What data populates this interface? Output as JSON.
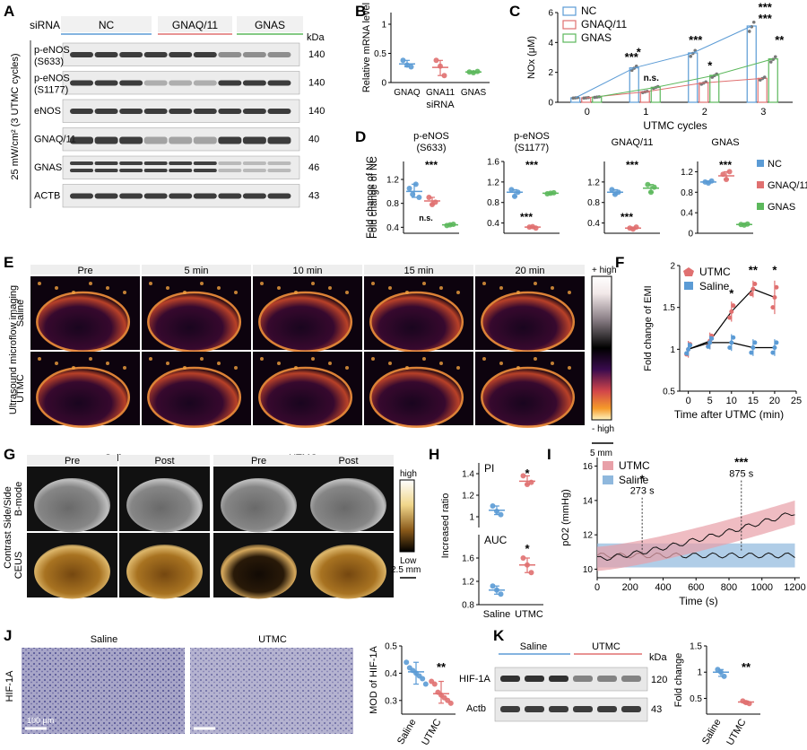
{
  "panels": {
    "A": {
      "label": "A",
      "siRNA": "siRNA",
      "groups": [
        "NC",
        "GNAQ/11",
        "GNAS"
      ],
      "groupColors": [
        "#5b9bd5",
        "#e07070",
        "#5cb85c"
      ],
      "rows": [
        {
          "name": "p-eNOS",
          "sub": "(S633)",
          "kda": "140"
        },
        {
          "name": "p-eNOS",
          "sub": "(S1177)",
          "kda": "140"
        },
        {
          "name": "eNOS",
          "sub": "",
          "kda": "140"
        },
        {
          "name": "GNAQ/11",
          "sub": "",
          "kda": "40"
        },
        {
          "name": "GNAS",
          "sub": "",
          "kda": "46"
        },
        {
          "name": "ACTB",
          "sub": "",
          "kda": "43"
        }
      ],
      "kdaHeader": "kDa",
      "sideLabel": "25 mW/cm² (3 UTMC cycles)"
    },
    "B": {
      "label": "B"
    },
    "C": {
      "label": "C"
    },
    "D": {
      "label": "D"
    },
    "E": {
      "label": "E",
      "times": [
        "Pre",
        "5 min",
        "10 min",
        "15 min",
        "20 min"
      ],
      "rows": [
        "Saline",
        "UTMC"
      ],
      "sideLabel": "Ultrasound microflow imaging",
      "scaleTop": "+ high",
      "scaleBottom": "- high",
      "scaleBar": "5 mm"
    },
    "F": {
      "label": "F"
    },
    "G": {
      "label": "G",
      "groups": [
        "Saline",
        "UTMC"
      ],
      "phases": [
        "Pre",
        "Post",
        "Pre",
        "Post"
      ],
      "rows": [
        "B-mode",
        "CEUS"
      ],
      "sideLabel": "Contrast Side/Side",
      "scaleTop": "high",
      "scaleBottom": "Low",
      "scaleBar": "2.5 mm"
    },
    "H": {
      "label": "H"
    },
    "I": {
      "label": "I"
    },
    "J": {
      "label": "J",
      "groups": [
        "Saline",
        "UTMC"
      ],
      "rowLabel": "HIF-1A",
      "scaleBar": "100 μm"
    },
    "K": {
      "label": "K",
      "groups": [
        "Saline",
        "UTMC"
      ],
      "rows": [
        {
          "name": "HIF-1A",
          "kda": "120"
        },
        {
          "name": "Actb",
          "kda": "43"
        }
      ],
      "kdaHeader": "kDa"
    }
  },
  "chart_data": [
    {
      "id": "B",
      "type": "scatter",
      "ylabel": "Relative mRNA level",
      "xlabel": "siRNA",
      "categories": [
        "GNAQ",
        "GNA11",
        "GNAS"
      ],
      "ylim": [
        0,
        1.2
      ],
      "yticks": [
        0,
        0.5,
        1.0
      ],
      "series": [
        {
          "name": "GNAQ",
          "color": "#5b9bd5",
          "points": [
            0.38,
            0.3,
            0.27
          ],
          "mean": 0.32
        },
        {
          "name": "GNA11",
          "color": "#e07070",
          "points": [
            0.38,
            0.28,
            0.12
          ],
          "mean": 0.26
        },
        {
          "name": "GNAS",
          "color": "#5cb85c",
          "points": [
            0.18,
            0.17,
            0.19
          ],
          "mean": 0.18
        }
      ]
    },
    {
      "id": "C",
      "type": "bar",
      "ylabel": "NOx (μM)",
      "xlabel": "UTMC cycles",
      "categories": [
        "0",
        "1",
        "2",
        "3"
      ],
      "ylim": [
        0,
        6
      ],
      "yticks": [
        0,
        2,
        4,
        6
      ],
      "legend": [
        "NC",
        "GNAQ/11",
        "GNAS"
      ],
      "colors": [
        "#5b9bd5",
        "#e07070",
        "#5cb85c"
      ],
      "series": [
        {
          "name": "NC",
          "values": [
            0.3,
            2.3,
            3.3,
            5.1
          ]
        },
        {
          "name": "GNAQ/11",
          "values": [
            0.3,
            0.7,
            1.3,
            1.6
          ]
        },
        {
          "name": "GNAS",
          "values": [
            0.35,
            1.0,
            1.8,
            2.9
          ]
        }
      ],
      "annotations": [
        "*",
        "***",
        "n.s.",
        "***",
        "*",
        "***",
        "***",
        "**"
      ]
    },
    {
      "id": "D1",
      "type": "scatter",
      "title": "p-eNOS",
      "subtitle": "(S633)",
      "ylabel": "Fold change of NC",
      "ylim": [
        0.3,
        1.5
      ],
      "yticks": [
        0.4,
        0.8,
        1.2
      ],
      "series": [
        {
          "name": "NC",
          "color": "#5b9bd5",
          "points": [
            1.05,
            0.95,
            1.12,
            0.9
          ],
          "mean": 1.0
        },
        {
          "name": "GNAQ/11",
          "color": "#e07070",
          "points": [
            0.9,
            0.78,
            0.82
          ],
          "mean": 0.84
        },
        {
          "name": "GNAS",
          "color": "#5cb85c",
          "points": [
            0.43,
            0.44,
            0.45
          ],
          "mean": 0.44
        }
      ],
      "annotations": [
        "***",
        "n.s."
      ]
    },
    {
      "id": "D2",
      "type": "scatter",
      "title": "p-eNOS",
      "subtitle": "(S1177)",
      "ylim": [
        0.2,
        1.6
      ],
      "yticks": [
        0.4,
        0.8,
        1.2,
        1.6
      ],
      "series": [
        {
          "name": "NC",
          "color": "#5b9bd5",
          "points": [
            1.05,
            0.92,
            1.0
          ],
          "mean": 1.0
        },
        {
          "name": "GNAQ/11",
          "color": "#e07070",
          "points": [
            0.32,
            0.33,
            0.3
          ],
          "mean": 0.32
        },
        {
          "name": "GNAS",
          "color": "#5cb85c",
          "points": [
            0.97,
            0.98,
            0.99
          ],
          "mean": 0.98
        }
      ],
      "annotations": [
        "***",
        "***"
      ]
    },
    {
      "id": "D3",
      "type": "scatter",
      "title": "GNAQ/11",
      "ylim": [
        0.2,
        1.6
      ],
      "yticks": [
        0.4,
        0.8,
        1.2
      ],
      "series": [
        {
          "name": "NC",
          "color": "#5b9bd5",
          "points": [
            1.05,
            0.96,
            1.0
          ],
          "mean": 1.0
        },
        {
          "name": "GNAQ/11",
          "color": "#e07070",
          "points": [
            0.3,
            0.28,
            0.32
          ],
          "mean": 0.3
        },
        {
          "name": "GNAS",
          "color": "#5cb85c",
          "points": [
            1.15,
            1.0,
            1.1
          ],
          "mean": 1.08
        }
      ],
      "annotations": [
        "***",
        "***"
      ]
    },
    {
      "id": "D4",
      "type": "scatter",
      "title": "GNAS",
      "ylim": [
        0,
        1.4
      ],
      "yticks": [
        0,
        0.4,
        0.8,
        1.2
      ],
      "legend": [
        "NC",
        "GNAQ/11",
        "GNAS"
      ],
      "colors": [
        "#5b9bd5",
        "#e07070",
        "#5cb85c"
      ],
      "series": [
        {
          "name": "NC",
          "color": "#5b9bd5",
          "points": [
            1.0,
            0.98,
            1.02
          ],
          "mean": 1.0
        },
        {
          "name": "GNAQ/11",
          "color": "#e07070",
          "points": [
            1.15,
            1.05,
            1.2
          ],
          "mean": 1.12
        },
        {
          "name": "GNAS",
          "color": "#5cb85c",
          "points": [
            0.17,
            0.16,
            0.18
          ],
          "mean": 0.17
        }
      ],
      "annotations": [
        "***"
      ]
    },
    {
      "id": "F",
      "type": "line",
      "ylabel": "Fold change of EMI",
      "xlabel": "Time after UTMC (min)",
      "xlim": [
        -2,
        25
      ],
      "ylim": [
        0.5,
        2.0
      ],
      "xticks": [
        0,
        5,
        10,
        15,
        20,
        25
      ],
      "yticks": [
        0.5,
        1.0,
        1.5,
        2.0
      ],
      "legend": [
        "UTMC",
        "Saline"
      ],
      "series": [
        {
          "name": "UTMC",
          "color": "#e07070",
          "x": [
            0,
            5,
            10,
            15,
            20
          ],
          "y": [
            1.0,
            1.1,
            1.45,
            1.72,
            1.62
          ],
          "err": [
            0.1,
            0.1,
            0.12,
            0.1,
            0.2
          ]
        },
        {
          "name": "Saline",
          "color": "#5b9bd5",
          "x": [
            0,
            5,
            10,
            15,
            20
          ],
          "y": [
            1.0,
            1.08,
            1.08,
            1.02,
            1.02
          ],
          "err": [
            0.08,
            0.08,
            0.1,
            0.1,
            0.1
          ]
        }
      ],
      "annotations": [
        "*",
        "**",
        "*"
      ]
    },
    {
      "id": "H1",
      "type": "scatter",
      "title": "PI",
      "ylim": [
        0.9,
        1.5
      ],
      "yticks": [
        1.0,
        1.2,
        1.4
      ],
      "categories": [
        "Saline",
        "UTMC"
      ],
      "series": [
        {
          "name": "Saline",
          "color": "#5b9bd5",
          "points": [
            1.1,
            1.05,
            1.02
          ],
          "mean": 1.06
        },
        {
          "name": "UTMC",
          "color": "#e07070",
          "points": [
            1.38,
            1.3,
            1.32
          ],
          "mean": 1.33
        }
      ],
      "annotations": [
        "*"
      ]
    },
    {
      "id": "H2",
      "type": "scatter",
      "title": "AUC",
      "ylabel": "Increased ratio",
      "ylim": [
        0.8,
        2.0
      ],
      "yticks": [
        0.8,
        1.2,
        1.6
      ],
      "categories": [
        "Saline",
        "UTMC"
      ],
      "series": [
        {
          "name": "Saline",
          "color": "#5b9bd5",
          "points": [
            1.12,
            1.05,
            0.98
          ],
          "mean": 1.05
        },
        {
          "name": "UTMC",
          "color": "#e07070",
          "points": [
            1.6,
            1.48,
            1.35
          ],
          "mean": 1.48
        }
      ],
      "annotations": [
        "*"
      ]
    },
    {
      "id": "I",
      "type": "line",
      "ylabel": "pO2 (mmHg)",
      "xlabel": "Time (s)",
      "xlim": [
        0,
        1230
      ],
      "ylim": [
        9.5,
        16.5
      ],
      "xticks": [
        0,
        200,
        400,
        600,
        800,
        1000,
        1200
      ],
      "yticks": [
        10,
        12,
        14,
        16
      ],
      "legend": [
        "UTMC",
        "Saline"
      ],
      "series": [
        {
          "name": "UTMC",
          "color": "#e8a0a8",
          "start": 10.6,
          "end": 13.3
        },
        {
          "name": "Saline",
          "color": "#8fb8dd",
          "start": 10.8,
          "end": 10.8
        }
      ],
      "annotations": [
        {
          "text": "*",
          "time": "273 s",
          "x": 273
        },
        {
          "text": "***",
          "time": "875 s",
          "x": 875
        }
      ]
    },
    {
      "id": "J",
      "type": "scatter",
      "ylabel": "MOD of HIF-1A",
      "categories": [
        "Saline",
        "UTMC"
      ],
      "ylim": [
        0.25,
        0.5
      ],
      "yticks": [
        0.3,
        0.4,
        0.5
      ],
      "series": [
        {
          "name": "Saline",
          "color": "#5b9bd5",
          "points": [
            0.44,
            0.42,
            0.41,
            0.4,
            0.39,
            0.38,
            0.36
          ],
          "mean": 0.405
        },
        {
          "name": "UTMC",
          "color": "#e07070",
          "points": [
            0.37,
            0.36,
            0.33,
            0.32,
            0.31,
            0.3,
            0.29
          ],
          "mean": 0.325
        }
      ],
      "annotations": [
        "**"
      ]
    },
    {
      "id": "K",
      "type": "scatter",
      "ylabel": "Fold change",
      "categories": [
        "Saline",
        "UTMC"
      ],
      "ylim": [
        0.2,
        1.5
      ],
      "yticks": [
        0.5,
        1.0,
        1.5
      ],
      "series": [
        {
          "name": "Saline",
          "color": "#5b9bd5",
          "points": [
            1.05,
            1.0,
            0.92
          ],
          "mean": 1.0
        },
        {
          "name": "UTMC",
          "color": "#e07070",
          "points": [
            0.45,
            0.42,
            0.4
          ],
          "mean": 0.43
        }
      ],
      "annotations": [
        "**"
      ]
    }
  ]
}
